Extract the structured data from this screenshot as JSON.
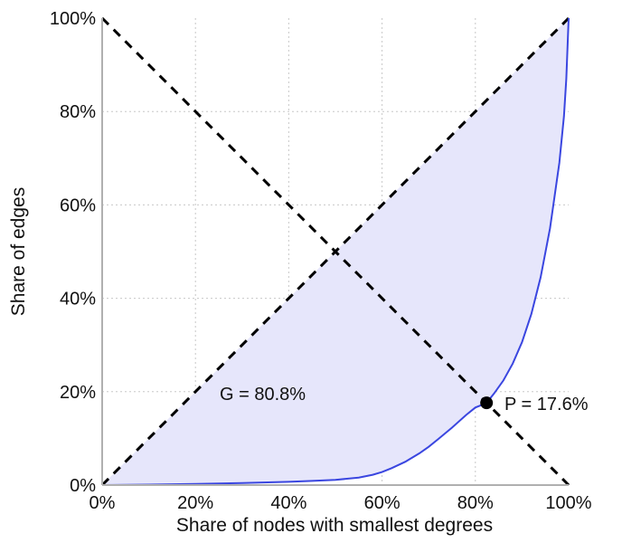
{
  "chart_data": {
    "type": "line",
    "title": "",
    "xlabel": "Share of nodes with smallest degrees",
    "ylabel": "Share of edges",
    "xlim": [
      0,
      100
    ],
    "ylim": [
      0,
      100
    ],
    "x_ticks": [
      "0%",
      "20%",
      "40%",
      "60%",
      "80%",
      "100%"
    ],
    "y_ticks": [
      "0%",
      "20%",
      "40%",
      "60%",
      "80%",
      "100%"
    ],
    "grid": true,
    "series": [
      {
        "color": "#3a46e0",
        "fill_color": "#e6e6fb",
        "x": [
          0,
          10,
          20,
          30,
          40,
          45,
          50,
          55,
          58,
          60,
          62,
          65,
          68,
          70,
          72,
          75,
          78,
          80,
          82,
          82.4,
          84,
          86,
          88,
          90,
          92,
          94,
          96,
          98,
          99,
          99.5,
          100
        ],
        "y": [
          0,
          0.1,
          0.25,
          0.45,
          0.7,
          0.9,
          1.1,
          1.6,
          2.2,
          2.8,
          3.6,
          5,
          6.8,
          8.2,
          9.8,
          12.3,
          15,
          16.6,
          17.4,
          17.6,
          19.6,
          22.4,
          26,
          30.6,
          36.6,
          44.5,
          55,
          69,
          79,
          87,
          100
        ]
      }
    ],
    "reference_lines": [
      {
        "from": [
          0,
          0
        ],
        "to": [
          100,
          100
        ],
        "style": "dashed",
        "color": "#000000"
      },
      {
        "from": [
          0,
          100
        ],
        "to": [
          100,
          0
        ],
        "style": "dashed",
        "color": "#000000"
      }
    ],
    "marker": {
      "x": 82.4,
      "y": 17.6,
      "color": "#000000"
    },
    "annotations": {
      "gini": "G = 80.8%",
      "point": "P = 17.6%"
    }
  }
}
